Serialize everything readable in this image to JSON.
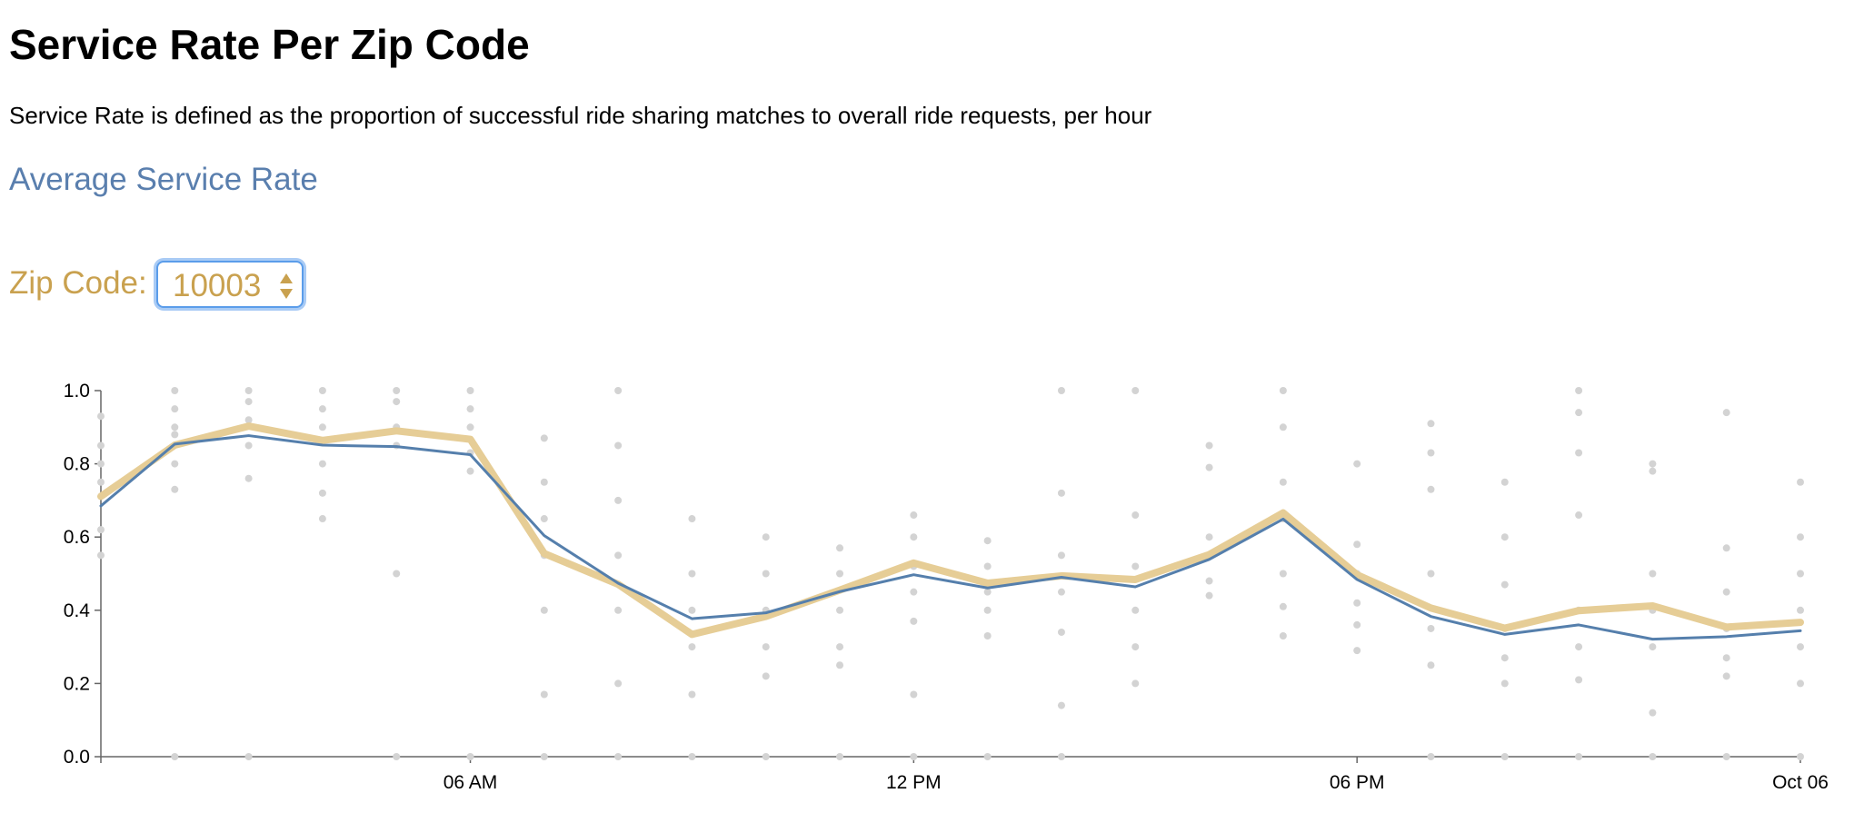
{
  "title": "Service Rate Per Zip Code",
  "description": "Service Rate is defined as the proportion of successful ride sharing matches to overall ride requests, per hour",
  "average_link": "Average Service Rate",
  "zip_select": {
    "label": "Zip Code:",
    "value": "10003"
  },
  "chart_data": {
    "type": "line",
    "x": [
      1,
      2,
      3,
      4,
      5,
      6,
      7,
      8,
      9,
      10,
      11,
      12,
      13,
      14,
      15,
      16,
      17,
      18,
      19,
      20,
      21,
      22,
      23,
      24
    ],
    "xlim": [
      1,
      24
    ],
    "xticks": [
      {
        "value": 6,
        "label": "06 AM"
      },
      {
        "value": 12,
        "label": "12 PM"
      },
      {
        "value": 18,
        "label": "06 PM"
      },
      {
        "value": 24,
        "label": "Oct 06"
      }
    ],
    "ylim": [
      0,
      1
    ],
    "yticks": [
      {
        "value": 0,
        "label": "0.0"
      },
      0.2,
      0.4,
      0.6,
      0.8,
      {
        "value": 1,
        "label": "1.0"
      }
    ],
    "grid": false,
    "series": [
      {
        "color": "#e6cd96",
        "width": 8,
        "values": [
          0.711,
          0.851,
          0.903,
          0.864,
          0.89,
          0.867,
          0.555,
          0.471,
          0.334,
          0.383,
          0.455,
          0.529,
          0.474,
          0.494,
          0.484,
          0.552,
          0.666,
          0.497,
          0.406,
          0.351,
          0.399,
          0.412,
          0.354,
          0.367
        ]
      },
      {
        "color": "#557fac",
        "width": 3,
        "values": [
          0.685,
          0.854,
          0.877,
          0.851,
          0.847,
          0.825,
          0.604,
          0.474,
          0.377,
          0.393,
          0.451,
          0.497,
          0.461,
          0.49,
          0.464,
          0.539,
          0.649,
          0.484,
          0.383,
          0.334,
          0.36,
          0.321,
          0.328,
          0.344
        ]
      }
    ],
    "points_color": "#d3d3d3",
    "points": [
      {
        "x": 1,
        "values": [
          0.93,
          0.85,
          0.8,
          0.62,
          0.55,
          0.75
        ]
      },
      {
        "x": 2,
        "values": [
          1.0,
          0.95,
          0.88,
          0.8,
          0.73,
          0.9,
          0
        ]
      },
      {
        "x": 3,
        "values": [
          1.0,
          0.97,
          0.92,
          0.85,
          0.76,
          0
        ]
      },
      {
        "x": 4,
        "values": [
          1.0,
          0.95,
          0.9,
          0.8,
          0.72,
          0.65
        ]
      },
      {
        "x": 5,
        "values": [
          1.0,
          0.97,
          0.9,
          0.85,
          0.5,
          0
        ]
      },
      {
        "x": 6,
        "values": [
          1.0,
          0.95,
          0.9,
          0.83,
          0.78,
          0
        ]
      },
      {
        "x": 7,
        "values": [
          0.87,
          0.75,
          0.65,
          0.55,
          0.4,
          0.17,
          0
        ]
      },
      {
        "x": 8,
        "values": [
          1.0,
          0.85,
          0.7,
          0.55,
          0.4,
          0.2,
          0
        ]
      },
      {
        "x": 9,
        "values": [
          0.65,
          0.5,
          0.4,
          0.3,
          0.17,
          0
        ]
      },
      {
        "x": 10,
        "values": [
          0.6,
          0.5,
          0.4,
          0.3,
          0.22,
          0
        ]
      },
      {
        "x": 11,
        "values": [
          0.57,
          0.5,
          0.4,
          0.3,
          0.25,
          0
        ]
      },
      {
        "x": 12,
        "values": [
          0.66,
          0.6,
          0.52,
          0.45,
          0.37,
          0.17,
          0
        ]
      },
      {
        "x": 13,
        "values": [
          0.59,
          0.52,
          0.45,
          0.4,
          0.33,
          0
        ]
      },
      {
        "x": 14,
        "values": [
          1.0,
          0.72,
          0.55,
          0.45,
          0.34,
          0.14,
          0
        ]
      },
      {
        "x": 15,
        "values": [
          1.0,
          0.66,
          0.52,
          0.4,
          0.3,
          0.2
        ]
      },
      {
        "x": 16,
        "values": [
          0.85,
          0.79,
          0.6,
          0.55,
          0.48,
          0.44
        ]
      },
      {
        "x": 17,
        "values": [
          1.0,
          0.9,
          0.75,
          0.65,
          0.5,
          0.41,
          0.33
        ]
      },
      {
        "x": 18,
        "values": [
          0.8,
          0.58,
          0.5,
          0.42,
          0.36,
          0.29
        ]
      },
      {
        "x": 19,
        "values": [
          0.91,
          0.83,
          0.73,
          0.5,
          0.35,
          0.25,
          0
        ]
      },
      {
        "x": 20,
        "values": [
          0.75,
          0.6,
          0.47,
          0.35,
          0.27,
          0.2,
          0
        ]
      },
      {
        "x": 21,
        "values": [
          1.0,
          0.94,
          0.83,
          0.66,
          0.4,
          0.3,
          0.21,
          0
        ]
      },
      {
        "x": 22,
        "values": [
          0.8,
          0.78,
          0.5,
          0.4,
          0.3,
          0.12,
          0
        ]
      },
      {
        "x": 23,
        "values": [
          0.94,
          0.57,
          0.45,
          0.35,
          0.27,
          0.22,
          0
        ]
      },
      {
        "x": 24,
        "values": [
          0.75,
          0.6,
          0.5,
          0.4,
          0.3,
          0.2,
          0
        ]
      }
    ]
  }
}
